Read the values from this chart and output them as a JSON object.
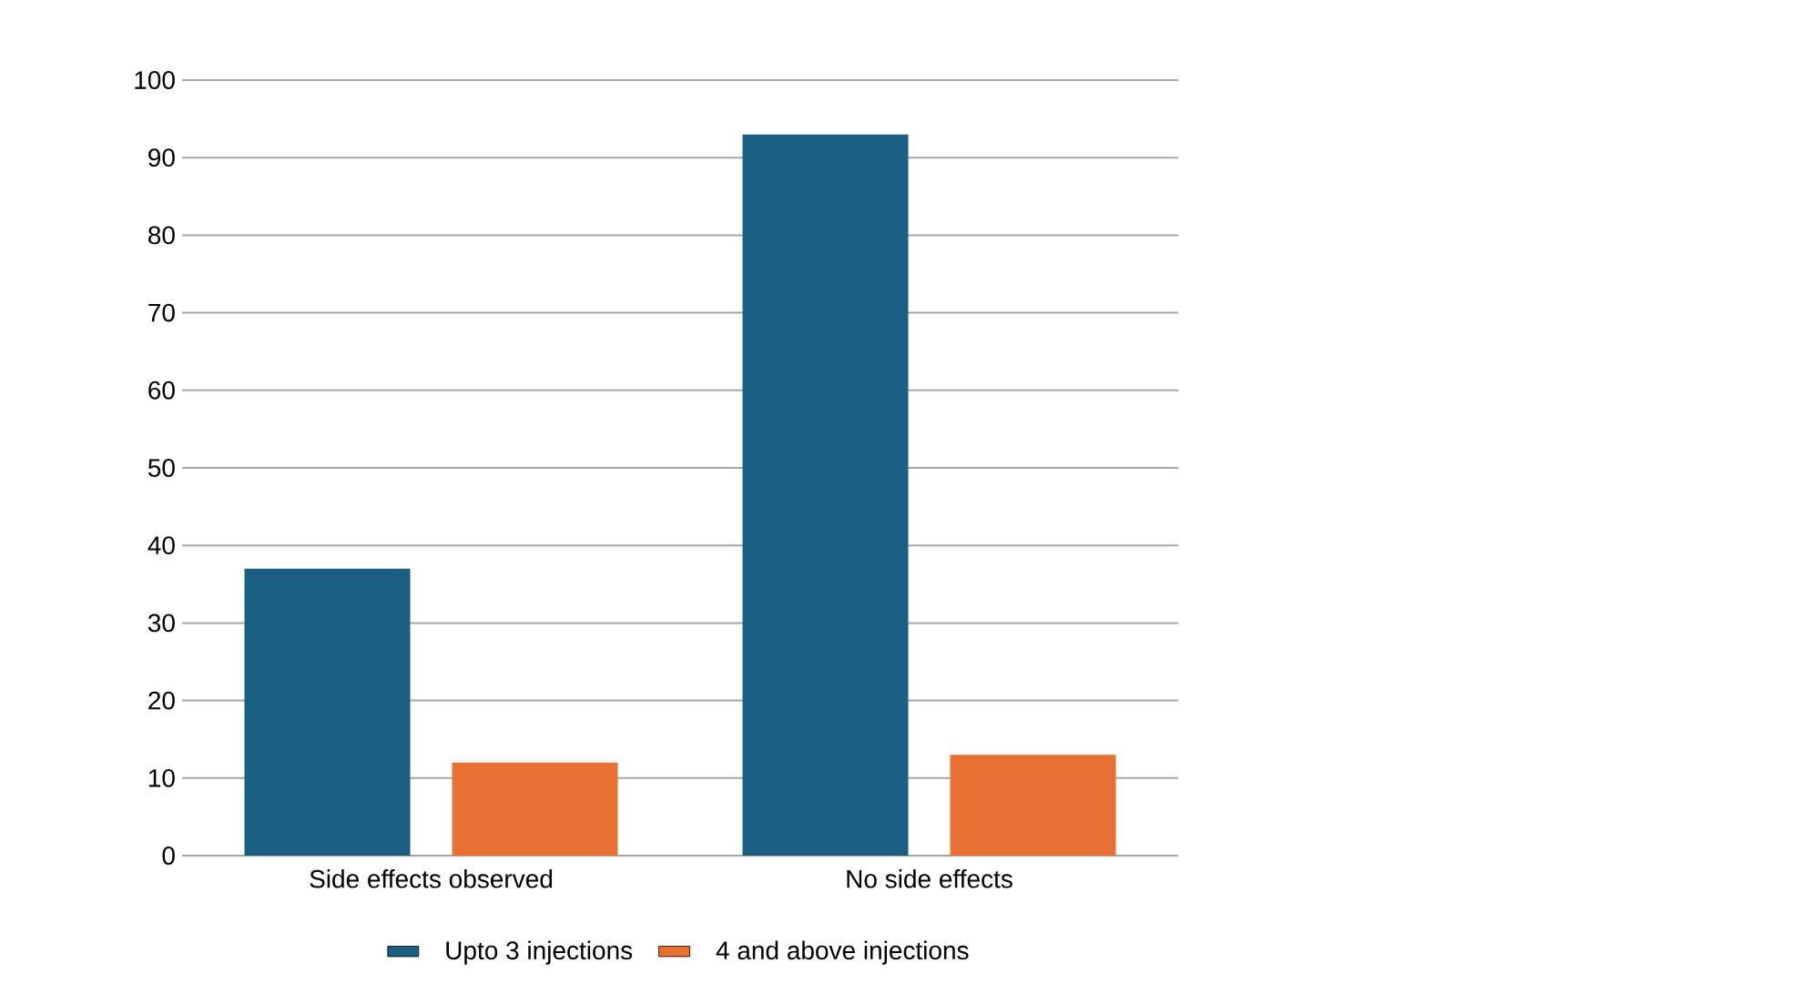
{
  "chart_data": {
    "type": "bar",
    "categories": [
      "Side effects observed",
      "No side effects"
    ],
    "series": [
      {
        "name": "Upto 3 injections",
        "color": "#1a5f82",
        "values": [
          37,
          93
        ]
      },
      {
        "name": "4 and above injections",
        "color": "#e87033",
        "values": [
          12,
          13
        ]
      }
    ],
    "ylim": [
      0,
      100
    ],
    "yticks": [
      0,
      10,
      20,
      30,
      40,
      50,
      60,
      70,
      80,
      90,
      100
    ],
    "grid": "y",
    "legend": "bottom"
  }
}
